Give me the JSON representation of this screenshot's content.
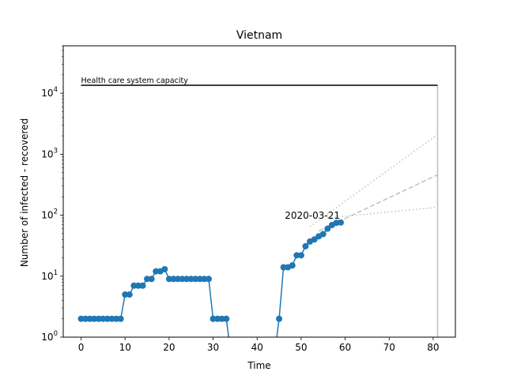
{
  "chart_data": {
    "type": "line",
    "title": "Vietnam",
    "xlabel": "Time",
    "ylabel": "Number of infected - recovered",
    "xlim": [
      -4.05,
      85.05
    ],
    "ylim": [
      1,
      60000
    ],
    "yscale": "log",
    "grid": false,
    "x_ticks": [
      0,
      10,
      20,
      30,
      40,
      50,
      60,
      70,
      80
    ],
    "y_ticks": [
      {
        "value": 1,
        "base": "10",
        "exp": "0"
      },
      {
        "value": 10,
        "base": "10",
        "exp": "1"
      },
      {
        "value": 100,
        "base": "10",
        "exp": "2"
      },
      {
        "value": 1000,
        "base": "10",
        "exp": "3"
      },
      {
        "value": 10000,
        "base": "10",
        "exp": "4"
      }
    ],
    "colors": {
      "series": "#1f77b4",
      "capacity": "#000000",
      "projection": "#bfbfbf",
      "end_marker": "#bfbfbf"
    },
    "series": [
      {
        "values": [
          [
            0,
            2
          ],
          [
            1,
            2
          ],
          [
            2,
            2
          ],
          [
            3,
            2
          ],
          [
            4,
            2
          ],
          [
            5,
            2
          ],
          [
            6,
            2
          ],
          [
            7,
            2
          ],
          [
            8,
            2
          ],
          [
            9,
            2
          ],
          [
            10,
            5
          ],
          [
            11,
            5
          ],
          [
            12,
            7
          ],
          [
            13,
            7
          ],
          [
            14,
            7
          ],
          [
            15,
            9
          ],
          [
            16,
            9
          ],
          [
            17,
            12
          ],
          [
            18,
            12
          ],
          [
            19,
            13
          ],
          [
            20,
            9
          ],
          [
            21,
            9
          ],
          [
            22,
            9
          ],
          [
            23,
            9
          ],
          [
            24,
            9
          ],
          [
            25,
            9
          ],
          [
            26,
            9
          ],
          [
            27,
            9
          ],
          [
            28,
            9
          ],
          [
            29,
            9
          ],
          [
            30,
            2
          ],
          [
            31,
            2
          ],
          [
            32,
            2
          ],
          [
            33,
            2
          ],
          [
            34,
            0
          ],
          [
            44,
            0
          ],
          [
            45,
            2
          ],
          [
            46,
            14
          ],
          [
            47,
            14
          ],
          [
            48,
            15
          ],
          [
            49,
            22
          ],
          [
            50,
            22
          ],
          [
            51,
            31
          ],
          [
            52,
            37
          ],
          [
            53,
            40
          ],
          [
            54,
            45
          ],
          [
            55,
            49
          ],
          [
            56,
            60
          ],
          [
            57,
            69
          ],
          [
            58,
            75
          ],
          [
            59,
            76
          ]
        ]
      }
    ],
    "capacity": {
      "label": "Health care system capacity",
      "value": 13500,
      "x_start": 0,
      "x_end": 81
    },
    "end_marker_x": 81,
    "annotation": {
      "text": "2020-03-21",
      "x": 59,
      "y": 76
    },
    "projections": [
      {
        "style": "dotted",
        "values": [
          [
            52,
            65
          ],
          [
            81,
            2100
          ]
        ]
      },
      {
        "style": "dashed",
        "values": [
          [
            54,
            55
          ],
          [
            81,
            460
          ]
        ]
      },
      {
        "style": "dotted",
        "values": [
          [
            56,
            90
          ],
          [
            81,
            135
          ]
        ]
      }
    ]
  }
}
